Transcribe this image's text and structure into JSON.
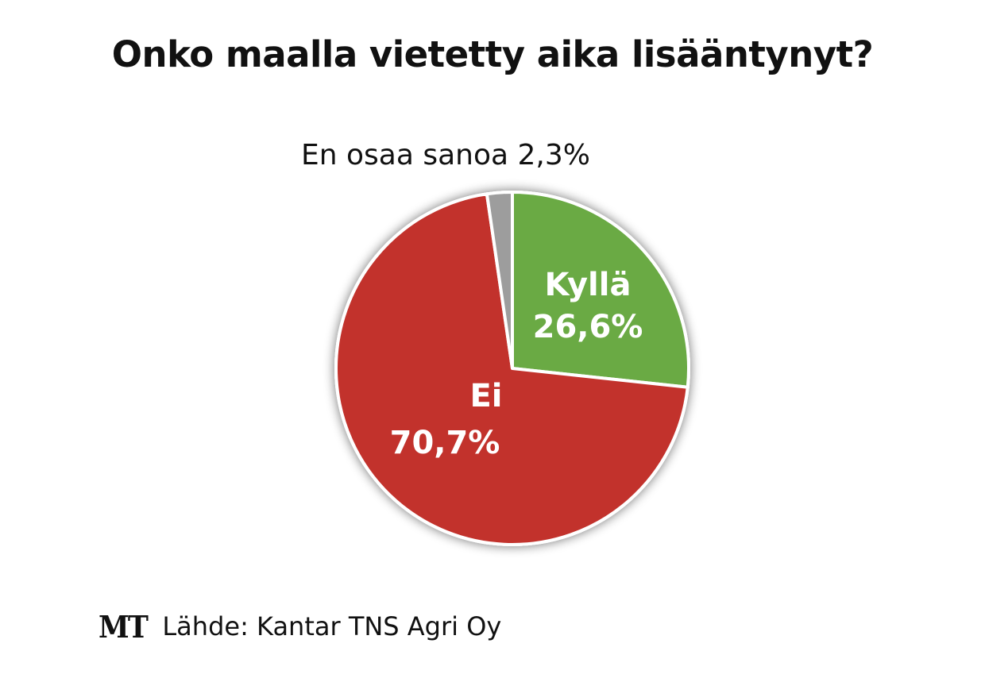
{
  "chart_data": {
    "type": "pie",
    "title": "Onko maalla vietetty aika lisääntynyt?",
    "slices": [
      {
        "name": "Kyllä",
        "value": 26.6,
        "label": "26,6%",
        "color": "#6aaa44"
      },
      {
        "name": "Ei",
        "value": 70.7,
        "label": "70,7%",
        "color": "#c2322c"
      },
      {
        "name": "En osaa sanoa",
        "value": 2.3,
        "label": "En osaa sanoa 2,3%",
        "color": "#9d9d9d"
      }
    ],
    "start_angle_deg": 0,
    "direction": "clockwise",
    "legend": "none"
  },
  "footer": {
    "logo": "MT",
    "source": "Lähde: Kantar TNS Agri Oy"
  }
}
